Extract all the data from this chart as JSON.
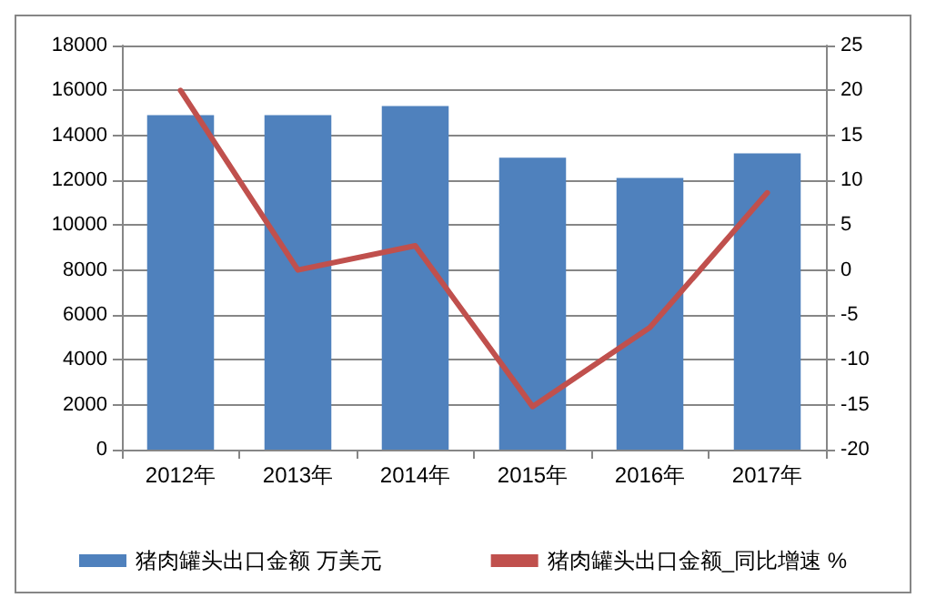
{
  "chart_data": {
    "type": "bar",
    "categories": [
      "2012年",
      "2013年",
      "2014年",
      "2015年",
      "2016年",
      "2017年"
    ],
    "series": [
      {
        "name": "猪肉罐头出口金额 万美元",
        "color": "#4f81bd",
        "values": [
          14900,
          14900,
          15300,
          13000,
          12100,
          13200
        ]
      },
      {
        "name": "猪肉罐头出口金额_同比增速 %",
        "type": "line",
        "axis": "y2",
        "color": "#c0504d",
        "values": [
          20,
          0,
          2.7,
          -15.2,
          -6.4,
          8.6
        ]
      }
    ],
    "ylim": [
      0,
      18000
    ],
    "yticks": [
      0,
      2000,
      4000,
      6000,
      8000,
      10000,
      12000,
      14000,
      16000,
      18000
    ],
    "y2lim": [
      -20,
      25
    ],
    "y2ticks": [
      -20,
      -15,
      -10,
      -5,
      0,
      5,
      10,
      15,
      20,
      25
    ],
    "grid": "y",
    "legend": "bottom",
    "marker": "none",
    "line_style": "solid"
  }
}
